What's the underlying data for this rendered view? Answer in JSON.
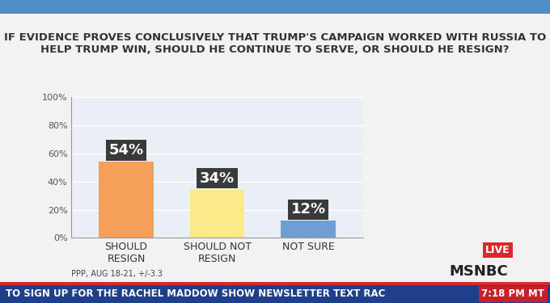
{
  "chart_data": {
    "type": "bar",
    "title": "IF EVIDENCE PROVES CONCLUSIVELY THAT TRUMP'S CAMPAIGN WORKED WITH RUSSIA TO HELP TRUMP WIN, SHOULD HE CONTINUE TO SERVE, OR SHOULD HE RESIGN?",
    "categories": [
      "SHOULD RESIGN",
      "SHOULD NOT RESIGN",
      "NOT SURE"
    ],
    "values": [
      54,
      34,
      12
    ],
    "value_labels": [
      "54%",
      "34%",
      "12%"
    ],
    "colors": [
      "#f5a05a",
      "#fbe98a",
      "#6f9fd2"
    ],
    "data_labels": true,
    "ylim": [
      0,
      100
    ],
    "yticks": [
      {
        "value": 0,
        "label": "0%"
      },
      {
        "value": 20,
        "label": "20%"
      },
      {
        "value": 40,
        "label": "40%"
      },
      {
        "value": 60,
        "label": "60%"
      },
      {
        "value": 80,
        "label": "80%"
      },
      {
        "value": 100,
        "label": "100%"
      }
    ],
    "grid": true,
    "annotations": [
      "PPP, AUG 18-21, +/-3.3",
      "LIVE",
      "MSNBC",
      "TO SIGN UP FOR THE RACHEL MADDOW SHOW NEWSLETTER TEXT RAC",
      "7:18 PM MT"
    ]
  }
}
